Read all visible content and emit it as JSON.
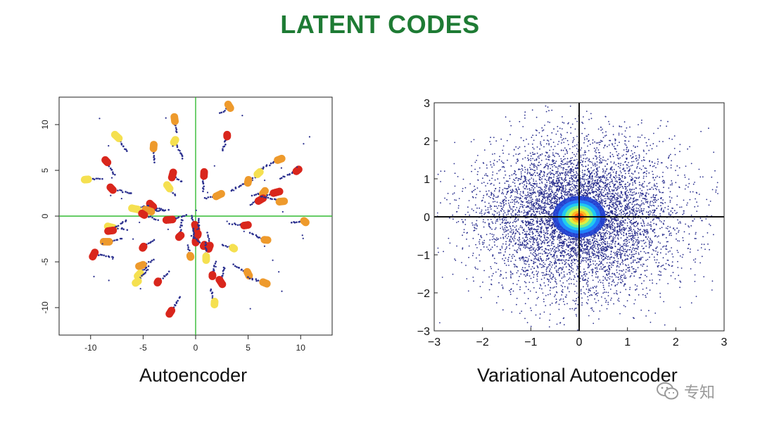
{
  "title": "LATENT CODES",
  "captions": {
    "autoencoder": "Autoencoder",
    "vae": "Variational Autoencoder"
  },
  "watermark": {
    "text": "专知",
    "icon": "wechat-icon",
    "color": "#9a9a9a"
  },
  "colors": {
    "title": "#1e7b34",
    "axis_line_ae": "#33bb33",
    "axis_line_vae": "#111111",
    "point_blue": "#2a2f8e",
    "cluster_yellow": "#f5e050",
    "cluster_orange": "#ee9a2c",
    "cluster_red": "#d9261c"
  },
  "chart_data": [
    {
      "type": "scatter",
      "title": "",
      "caption": "Autoencoder",
      "xlabel": "",
      "ylabel": "",
      "xlim": [
        -13,
        13
      ],
      "ylim": [
        -13,
        13
      ],
      "xticks": [
        -10,
        -5,
        0,
        5,
        10
      ],
      "yticks": [
        -10,
        -5,
        0,
        5,
        10
      ],
      "xtick_labels": [
        "-10",
        "-5",
        "0",
        "5",
        "10"
      ],
      "ytick_labels": [
        "-10",
        "-5",
        "0",
        "5",
        "10"
      ],
      "y_tick_labels_rotated": true,
      "reference_lines": {
        "x": 0,
        "y": 0,
        "color": "#33bb33"
      },
      "grid": false,
      "clusters": [
        {
          "x": 3.2,
          "y": 12.0,
          "color": "orange"
        },
        {
          "x": -2.0,
          "y": 10.6,
          "color": "orange"
        },
        {
          "x": -7.5,
          "y": 8.7,
          "color": "yellow"
        },
        {
          "x": -2.0,
          "y": 8.2,
          "color": "yellow"
        },
        {
          "x": -4.0,
          "y": 7.6,
          "color": "orange"
        },
        {
          "x": 3.0,
          "y": 8.8,
          "color": "red"
        },
        {
          "x": -8.5,
          "y": 6.0,
          "color": "red"
        },
        {
          "x": 8.0,
          "y": 6.2,
          "color": "orange"
        },
        {
          "x": 9.7,
          "y": 5.0,
          "color": "red"
        },
        {
          "x": -10.4,
          "y": 4.0,
          "color": "yellow"
        },
        {
          "x": 0.8,
          "y": 4.6,
          "color": "red"
        },
        {
          "x": -2.2,
          "y": 4.5,
          "color": "red"
        },
        {
          "x": 6.0,
          "y": 4.7,
          "color": "yellow"
        },
        {
          "x": 5.0,
          "y": 3.8,
          "color": "orange"
        },
        {
          "x": -8.0,
          "y": 3.0,
          "color": "red"
        },
        {
          "x": -2.6,
          "y": 3.2,
          "color": "yellow"
        },
        {
          "x": 2.2,
          "y": 2.3,
          "color": "orange"
        },
        {
          "x": 6.5,
          "y": 2.6,
          "color": "orange"
        },
        {
          "x": 7.7,
          "y": 2.6,
          "color": "red"
        },
        {
          "x": 6.2,
          "y": 1.8,
          "color": "red"
        },
        {
          "x": 8.2,
          "y": 1.6,
          "color": "orange"
        },
        {
          "x": -4.2,
          "y": 1.2,
          "color": "red"
        },
        {
          "x": -5.8,
          "y": 0.8,
          "color": "yellow"
        },
        {
          "x": -4.5,
          "y": 0.6,
          "color": "orange"
        },
        {
          "x": -5.0,
          "y": 0.2,
          "color": "red"
        },
        {
          "x": 10.4,
          "y": -0.6,
          "color": "orange"
        },
        {
          "x": -2.5,
          "y": -0.4,
          "color": "red"
        },
        {
          "x": 4.8,
          "y": -1.0,
          "color": "red"
        },
        {
          "x": -8.1,
          "y": -1.2,
          "color": "yellow"
        },
        {
          "x": -8.1,
          "y": -1.6,
          "color": "red"
        },
        {
          "x": 0.0,
          "y": -1.2,
          "color": "red"
        },
        {
          "x": 0.2,
          "y": -2.0,
          "color": "red"
        },
        {
          "x": -1.5,
          "y": -2.2,
          "color": "red"
        },
        {
          "x": 0.0,
          "y": -2.8,
          "color": "red"
        },
        {
          "x": 6.7,
          "y": -2.6,
          "color": "orange"
        },
        {
          "x": -8.5,
          "y": -2.8,
          "color": "orange"
        },
        {
          "x": 0.8,
          "y": -3.2,
          "color": "red"
        },
        {
          "x": 1.3,
          "y": -3.4,
          "color": "red"
        },
        {
          "x": 3.6,
          "y": -3.5,
          "color": "yellow"
        },
        {
          "x": -5.0,
          "y": -3.4,
          "color": "red"
        },
        {
          "x": -9.7,
          "y": -4.2,
          "color": "red"
        },
        {
          "x": -0.5,
          "y": -4.4,
          "color": "orange"
        },
        {
          "x": 1.0,
          "y": -4.6,
          "color": "yellow"
        },
        {
          "x": -5.2,
          "y": -5.4,
          "color": "orange"
        },
        {
          "x": 5.0,
          "y": -6.3,
          "color": "orange"
        },
        {
          "x": -5.4,
          "y": -6.4,
          "color": "yellow"
        },
        {
          "x": 1.6,
          "y": -6.5,
          "color": "red"
        },
        {
          "x": -3.6,
          "y": -7.2,
          "color": "red"
        },
        {
          "x": -5.6,
          "y": -7.2,
          "color": "yellow"
        },
        {
          "x": 2.4,
          "y": -7.2,
          "color": "red"
        },
        {
          "x": 6.6,
          "y": -7.3,
          "color": "orange"
        },
        {
          "x": 1.8,
          "y": -9.5,
          "color": "yellow"
        },
        {
          "x": -2.4,
          "y": -10.5,
          "color": "red"
        }
      ]
    },
    {
      "type": "scatter",
      "title": "",
      "caption": "Variational Autoencoder",
      "xlabel": "",
      "ylabel": "",
      "xlim": [
        -3,
        3
      ],
      "ylim": [
        -3,
        3
      ],
      "xticks": [
        -3,
        -2,
        -1,
        0,
        1,
        2,
        3
      ],
      "yticks": [
        -3,
        -2,
        -1,
        0,
        1,
        2,
        3
      ],
      "xtick_labels": [
        "−3",
        "−2",
        "−1",
        "0",
        "1",
        "2",
        "3"
      ],
      "ytick_labels": [
        "−3",
        "−2",
        "−1",
        "0",
        "1",
        "2",
        "3"
      ],
      "reference_lines": {
        "x": 0,
        "y": 0,
        "color": "#111111"
      },
      "grid": false,
      "distribution": {
        "kind": "gaussian",
        "mean": [
          0,
          0
        ],
        "std": 1.0
      },
      "density_colormap": "jet"
    }
  ]
}
